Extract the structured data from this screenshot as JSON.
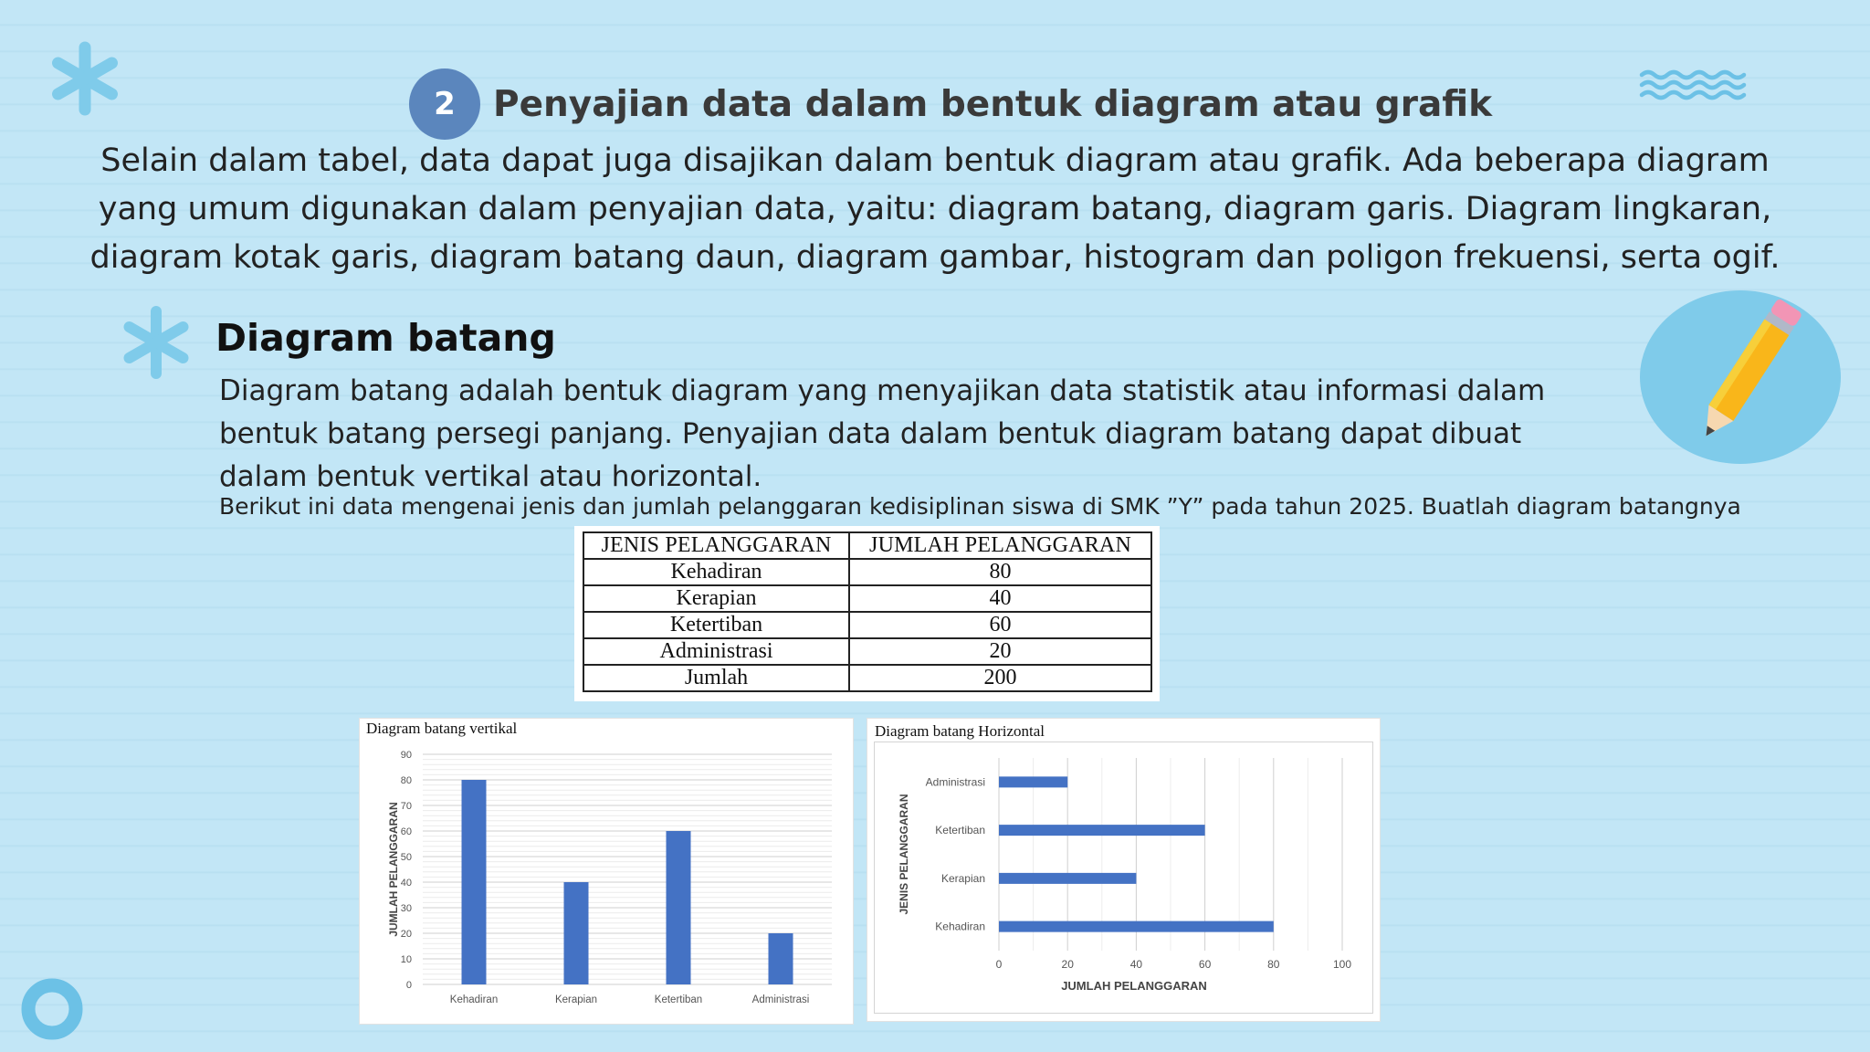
{
  "header": {
    "step_number": "2",
    "title": "Penyajian data dalam bentuk diagram atau grafik"
  },
  "intro_lines": [
    "Selain dalam tabel, data dapat juga disajikan dalam bentuk diagram atau grafik. Ada beberapa diagram",
    "yang umum digunakan dalam penyajian data, yaitu: diagram batang, diagram garis. Diagram lingkaran,",
    "diagram kotak garis, diagram batang daun, diagram gambar, histogram dan poligon frekuensi, serta ogif."
  ],
  "section": {
    "heading": "Diagram batang",
    "definition_lines": [
      "Diagram batang adalah bentuk diagram yang menyajikan data statistik atau informasi dalam",
      "bentuk batang persegi panjang. Penyajian data dalam bentuk diagram batang dapat dibuat",
      "dalam bentuk vertikal atau horizontal."
    ],
    "instruction": "Berikut ini data mengenai jenis dan jumlah pelanggaran kedisiplinan siswa di SMK ”Y” pada tahun 2025. Buatlah diagram batangnya"
  },
  "table": {
    "headers": [
      "JENIS PELANGGARAN",
      "JUMLAH PELANGGARAN"
    ],
    "rows": [
      [
        "Kehadiran",
        "80"
      ],
      [
        "Kerapian",
        "40"
      ],
      [
        "Ketertiban",
        "60"
      ],
      [
        "Administrasi",
        "20"
      ],
      [
        "Jumlah",
        "200"
      ]
    ]
  },
  "colors": {
    "background": "#c2e6f6",
    "accent_blue": "#5b86bd",
    "bar": "#4472c4",
    "decor": "#7fcbea"
  },
  "icons": [
    "asterisk-icon",
    "wave-icon",
    "pencil-icon",
    "ring-icon"
  ],
  "chart_data": [
    {
      "type": "bar",
      "orientation": "vertical",
      "title": "Diagram batang vertikal",
      "categories": [
        "Kehadiran",
        "Kerapian",
        "Ketertiban",
        "Administrasi"
      ],
      "values": [
        80,
        40,
        60,
        20
      ],
      "xlabel": "",
      "ylabel": "JUMLAH PELANGGARAN",
      "ylim": [
        0,
        90
      ],
      "yticks": [
        "0",
        "10",
        "20",
        "30",
        "40",
        "50",
        "60",
        "70",
        "80",
        "90"
      ],
      "grid": true
    },
    {
      "type": "bar",
      "orientation": "horizontal",
      "title": "Diagram batang Horizontal",
      "categories": [
        "Kehadiran",
        "Kerapian",
        "Ketertiban",
        "Administrasi"
      ],
      "values": [
        80,
        40,
        60,
        20
      ],
      "xlabel": "JUMLAH PELANGGARAN",
      "ylabel": "JENIS PELANGGARAN",
      "xlim": [
        0,
        100
      ],
      "xticks": [
        "0",
        "20",
        "40",
        "60",
        "80",
        "100"
      ],
      "grid": true
    }
  ]
}
